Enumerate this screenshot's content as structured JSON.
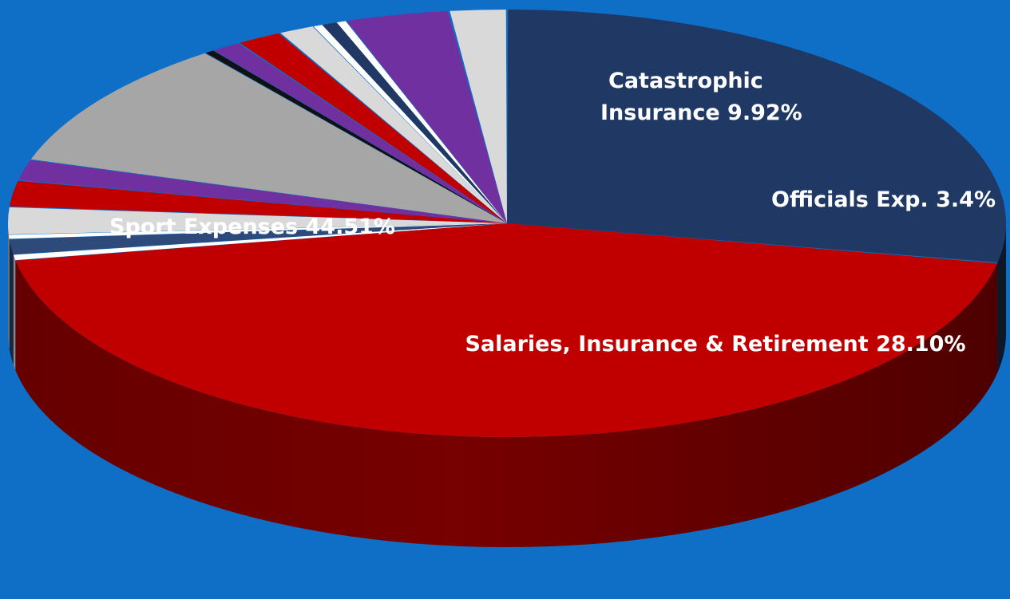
{
  "colors": {
    "background": "#0f6fc6",
    "red": "#c00000",
    "navy": "#1f3864",
    "gray": "#a6a6a6",
    "light_gray": "#d9d9d9",
    "purple": "#7030a0",
    "white": "#ffffff",
    "black": "#111111"
  },
  "chart_data": {
    "type": "pie",
    "style": "3d-tilted",
    "start_angle_deg": -90,
    "direction": "clockwise",
    "slices": [
      {
        "key": "salaries_insurance_retirement",
        "label": "Salaries, Insurance & Retirement  28.10%",
        "value": 28.1,
        "color": "#1f3864"
      },
      {
        "key": "sport_expenses",
        "label": "Sport Expenses  44.51%",
        "value": 44.51,
        "color": "#c00000"
      },
      {
        "key": "slice_white_1",
        "label": "",
        "value": 0.4,
        "color": "#ffffff"
      },
      {
        "key": "slice_navy_1",
        "label": "",
        "value": 1.2,
        "color": "#2e4a7a"
      },
      {
        "key": "slice_white_2",
        "label": "",
        "value": 0.3,
        "color": "#ffffff"
      },
      {
        "key": "slice_lightgray_1",
        "label": "",
        "value": 2.1,
        "color": "#d9d9d9"
      },
      {
        "key": "slice_red_1",
        "label": "",
        "value": 2.0,
        "color": "#c00000"
      },
      {
        "key": "slice_purple_1",
        "label": "",
        "value": 1.6,
        "color": "#7030a0"
      },
      {
        "key": "catastrophic_insurance",
        "label": "Catastrophic Insurance  9.92%",
        "label_lines": [
          "Catastrophic",
          "Insurance  9.92%"
        ],
        "value": 9.92,
        "color": "#a6a6a6"
      },
      {
        "key": "slice_black_1",
        "label": "",
        "value": 0.3,
        "color": "#111111"
      },
      {
        "key": "slice_purple_2",
        "label": "",
        "value": 1.0,
        "color": "#7030a0"
      },
      {
        "key": "slice_red_2",
        "label": "",
        "value": 1.5,
        "color": "#c00000"
      },
      {
        "key": "slice_lightgray_2",
        "label": "",
        "value": 1.2,
        "color": "#d9d9d9"
      },
      {
        "key": "slice_white_3",
        "label": "",
        "value": 0.3,
        "color": "#ffffff"
      },
      {
        "key": "slice_navy_2",
        "label": "",
        "value": 0.5,
        "color": "#1f3864"
      },
      {
        "key": "slice_white_4",
        "label": "",
        "value": 0.3,
        "color": "#ffffff"
      },
      {
        "key": "officials_exp",
        "label": "Officials Exp.  3.4%",
        "value": 3.4,
        "color": "#7030a0"
      },
      {
        "key": "slice_lightgray_3",
        "label": "",
        "value": 1.87,
        "color": "#d9d9d9"
      }
    ]
  }
}
